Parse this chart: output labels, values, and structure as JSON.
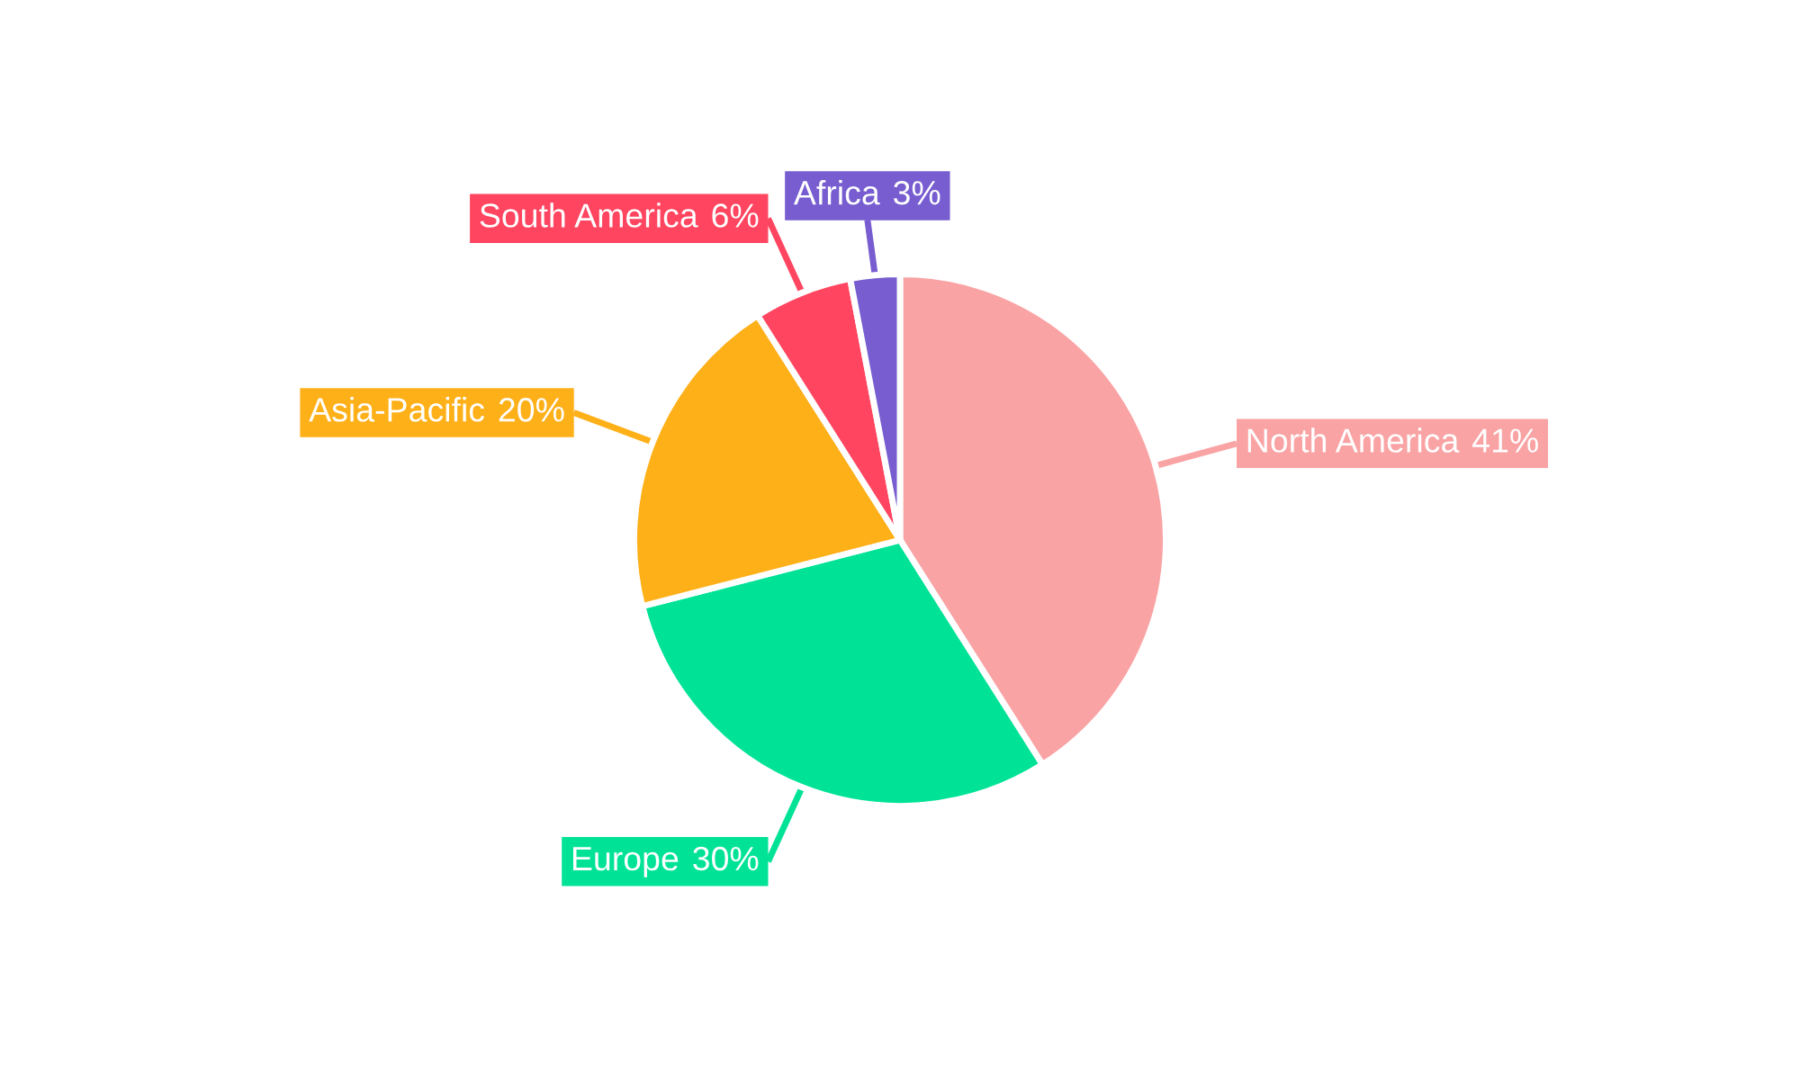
{
  "chart_data": {
    "type": "pie",
    "categories": [
      "North America",
      "Europe",
      "Asia-Pacific",
      "South America",
      "Africa"
    ],
    "values": [
      41,
      30,
      20,
      6,
      3
    ],
    "colors": [
      "#f9a3a4",
      "#00e396",
      "#feb019",
      "#ff4560",
      "#775dd0"
    ],
    "value_labels": [
      "41%",
      "30%",
      "20%",
      "6%",
      "3%"
    ],
    "legend": false
  }
}
